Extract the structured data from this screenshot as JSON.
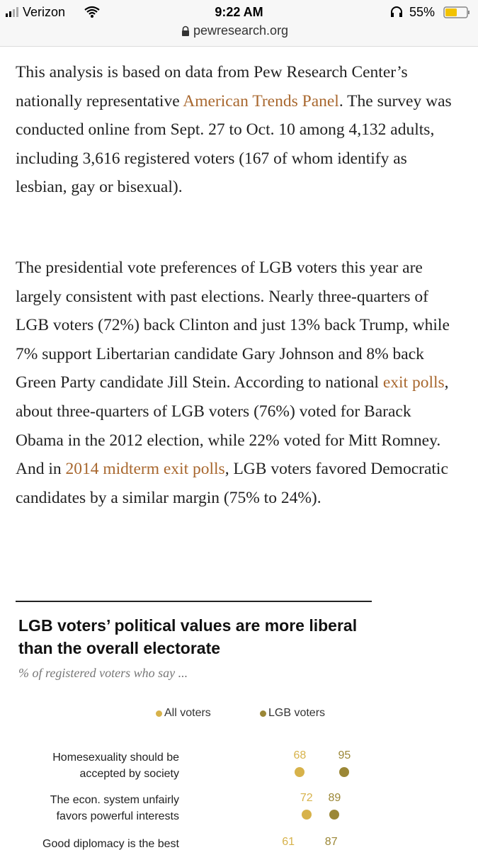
{
  "status_bar": {
    "carrier": "Verizon",
    "time": "9:22 AM",
    "battery": "55%",
    "url": "pewresearch.org"
  },
  "article": {
    "paragraphs": [
      [
        "This analysis is based on data from Pew Research Center’s nationally representative ",
        "American Trends Panel",
        ". The survey was conducted online from Sept. 27 to Oct. 10 among 4,132 adults, including 3,616 registered voters (167 of whom identify as lesbian, gay or bisexual)."
      ],
      [
        "The presidential vote preferences of LGB voters this year are largely consistent with past elections. Nearly three-quarters of LGB voters (72%) back Clinton and just 13% back Trump, while 7% support Libertarian candidate Gary Johnson and 8% back Green Party candidate Jill Stein. According to national ",
        "exit polls",
        ", about three-quarters of LGB voters (76%) voted for Barack Obama in the 2012 election, while 22% voted for Mitt Romney. And in ",
        "2014 midterm exit polls",
        ", LGB voters favored Democratic candidates by a similar margin (75% to 24%)."
      ]
    ]
  },
  "chart_data": {
    "type": "dot",
    "title": "LGB voters’ political values are more liberal than the overall electorate",
    "subtitle": "% of registered voters who say ...",
    "categories": [
      "Homesexuality should be accepted by society",
      "The econ. system unfairly favors powerful interests",
      "Good diplomacy is the best"
    ],
    "series": [
      {
        "name": "All voters",
        "color": "#d7b24a",
        "values": [
          68,
          72,
          61
        ]
      },
      {
        "name": "LGB voters",
        "color": "#9b8736",
        "values": [
          95,
          89,
          87
        ]
      }
    ]
  }
}
